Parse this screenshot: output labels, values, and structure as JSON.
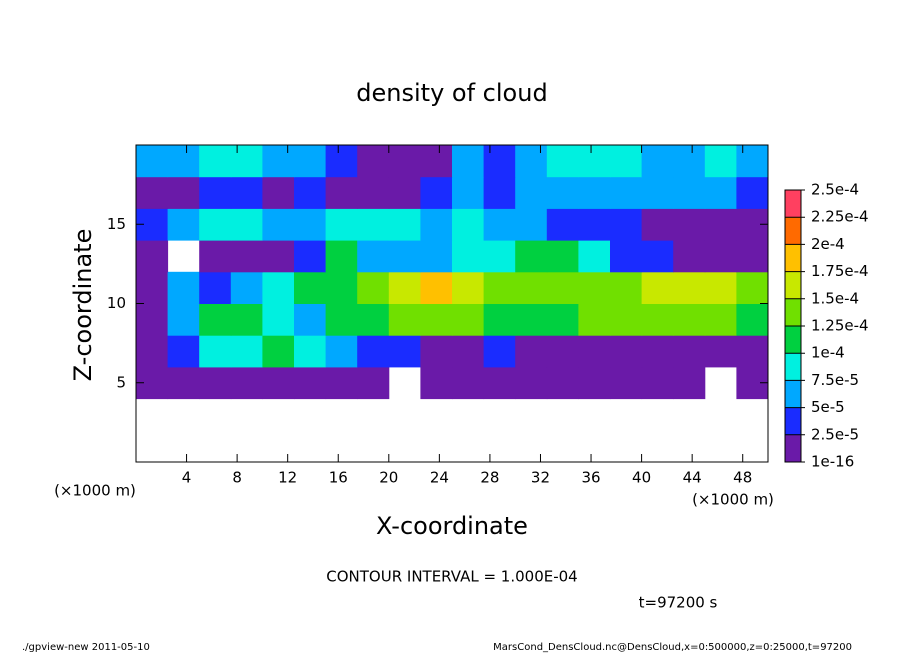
{
  "chart_data": {
    "type": "heatmap",
    "title": "density of cloud",
    "x_label": "X-coordinate",
    "y_label": "Z-coordinate",
    "x_unit": "(×1000 m)",
    "y_unit": "(×1000 m)",
    "contour_note": "CONTOUR INTERVAL = 1.000E-04",
    "time_note": "t=97200 s",
    "footer_left": "./gpview-new  2011-05-10",
    "footer_right": "MarsCond_DensCloud.nc@DensCloud,x=0:500000,z=0:25000,t=97200",
    "xlim": [
      0,
      50
    ],
    "ylim": [
      0,
      20
    ],
    "xticks": [
      4,
      8,
      12,
      16,
      20,
      24,
      28,
      32,
      36,
      40,
      44,
      48
    ],
    "yticks": [
      5,
      10,
      15
    ],
    "x": [
      1.25,
      3.75,
      6.25,
      8.75,
      11.25,
      13.75,
      16.25,
      18.75,
      21.25,
      23.75,
      26.25,
      28.75,
      31.25,
      33.75,
      36.25,
      38.75,
      41.25,
      43.75,
      46.25,
      48.75
    ],
    "y": [
      1,
      3,
      5,
      7,
      9,
      11,
      13,
      15,
      17,
      19
    ],
    "values": [
      [
        null,
        null,
        null,
        null,
        null,
        null,
        null,
        null,
        null,
        null,
        null,
        null,
        null,
        null,
        null,
        null,
        null,
        null,
        null,
        null
      ],
      [
        null,
        null,
        null,
        null,
        null,
        null,
        null,
        null,
        null,
        null,
        null,
        null,
        null,
        null,
        null,
        null,
        null,
        null,
        null,
        null
      ],
      [
        5e-06,
        5e-06,
        5e-06,
        5e-06,
        5e-06,
        1e-05,
        1e-05,
        5e-06,
        null,
        5e-06,
        5e-06,
        5e-06,
        5e-06,
        5e-06,
        5e-06,
        5e-06,
        5e-06,
        5e-06,
        null,
        5e-06
      ],
      [
        1e-05,
        3e-05,
        8e-05,
        9e-05,
        0.00011,
        8e-05,
        6e-05,
        4e-05,
        3e-05,
        2e-05,
        2e-05,
        3e-05,
        2e-05,
        1e-05,
        1e-05,
        1e-05,
        1e-05,
        1e-05,
        1e-05,
        1e-05
      ],
      [
        2e-05,
        5e-05,
        0.000105,
        0.00011,
        9e-05,
        7e-05,
        0.00011,
        0.00012,
        0.00013,
        0.000135,
        0.00013,
        0.00011,
        0.00011,
        0.00012,
        0.00013,
        0.000135,
        0.00013,
        0.00013,
        0.000125,
        0.00011
      ],
      [
        2e-05,
        6e-05,
        4e-05,
        5e-05,
        9e-05,
        0.00011,
        0.00012,
        0.000135,
        0.00016,
        0.00019,
        0.00017,
        0.00014,
        0.00013,
        0.00014,
        0.00014,
        0.000145,
        0.00015,
        0.000155,
        0.00017,
        0.00013
      ],
      [
        2e-05,
        null,
        1e-05,
        1e-05,
        1e-05,
        3e-05,
        0.00011,
        7e-05,
        5e-05,
        6e-05,
        8e-05,
        9e-05,
        0.00011,
        0.000115,
        8e-05,
        4e-05,
        3e-05,
        2e-05,
        2e-05,
        1e-05
      ],
      [
        4e-05,
        7e-05,
        8e-05,
        8e-05,
        7e-05,
        6e-05,
        9e-05,
        9e-05,
        8e-05,
        7e-05,
        8e-05,
        7e-05,
        6e-05,
        4e-05,
        3e-05,
        3e-05,
        2e-05,
        2e-05,
        2e-05,
        2e-05
      ],
      [
        2e-05,
        2e-05,
        3e-05,
        3e-05,
        2e-05,
        3e-05,
        2e-05,
        1e-05,
        2e-05,
        4e-05,
        5e-05,
        4e-05,
        5e-05,
        6e-05,
        7e-05,
        6e-05,
        5e-05,
        7e-05,
        6e-05,
        4e-05
      ],
      [
        6e-05,
        7e-05,
        8e-05,
        8e-05,
        7e-05,
        6e-05,
        3e-05,
        1e-05,
        1e-05,
        2e-05,
        5e-05,
        4e-05,
        6e-05,
        8e-05,
        9e-05,
        8e-05,
        7e-05,
        6e-05,
        8e-05,
        7e-05
      ]
    ],
    "colorbar_ticks": [
      {
        "value": 1e-16,
        "label": "1e-16"
      },
      {
        "value": 2.5e-05,
        "label": "2.5e-5"
      },
      {
        "value": 5e-05,
        "label": "5e-5"
      },
      {
        "value": 7.5e-05,
        "label": "7.5e-5"
      },
      {
        "value": 0.0001,
        "label": "1e-4"
      },
      {
        "value": 0.000125,
        "label": "1.25e-4"
      },
      {
        "value": 0.00015,
        "label": "1.5e-4"
      },
      {
        "value": 0.000175,
        "label": "1.75e-4"
      },
      {
        "value": 0.0002,
        "label": "2e-4"
      },
      {
        "value": 0.000225,
        "label": "2.25e-4"
      },
      {
        "value": 0.00025,
        "label": "2.5e-4"
      }
    ],
    "colors": [
      "#6a1aa8",
      "#1a2cff",
      "#00a8ff",
      "#00f0e0",
      "#00d040",
      "#70e000",
      "#c8e800",
      "#ffc000",
      "#ff6a00",
      "#ff4060"
    ]
  }
}
